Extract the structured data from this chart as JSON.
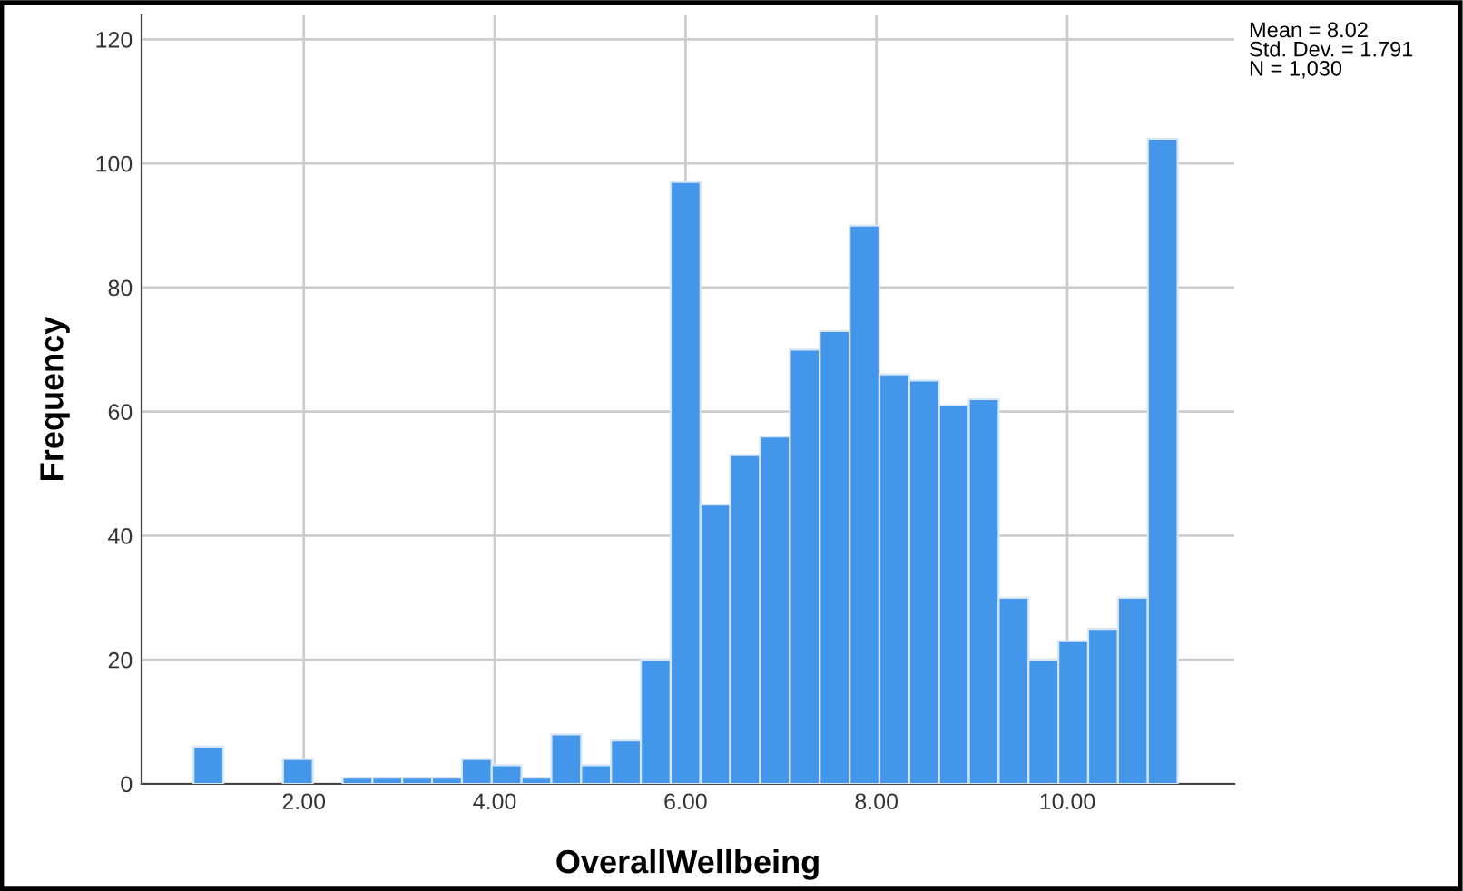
{
  "chart_data": {
    "type": "histogram",
    "xlabel": "OverallWellbeing",
    "ylabel": "Frequency",
    "bins": [
      0.84375,
      1.15625,
      1.46875,
      1.78125,
      2.09375,
      2.40625,
      2.71875,
      3.03125,
      3.34375,
      3.65625,
      3.96875,
      4.28125,
      4.59375,
      4.90625,
      5.21875,
      5.53125,
      5.84375,
      6.15625,
      6.46875,
      6.78125,
      7.09375,
      7.40625,
      7.71875,
      8.03125,
      8.34375,
      8.65625,
      8.96875,
      9.28125,
      9.59375,
      9.90625,
      10.21875,
      10.53125,
      10.84375,
      11.15625
    ],
    "values": [
      6,
      0,
      0,
      4,
      0,
      1,
      1,
      1,
      1,
      4,
      3,
      1,
      8,
      3,
      7,
      20,
      97,
      45,
      53,
      56,
      70,
      73,
      90,
      66,
      65,
      61,
      62,
      30,
      20,
      23,
      25,
      30,
      104
    ],
    "color": "#4396ea",
    "xlim": [
      0.3,
      11.75
    ],
    "ylim": [
      0,
      124
    ],
    "xticks": [
      {
        "value": 2,
        "label": "2.00"
      },
      {
        "value": 4,
        "label": "4.00"
      },
      {
        "value": 6,
        "label": "6.00"
      },
      {
        "value": 8,
        "label": "8.00"
      },
      {
        "value": 10,
        "label": "10.00"
      }
    ],
    "yticks": [
      0,
      20,
      40,
      60,
      80,
      100,
      120
    ],
    "grid": true,
    "annotations": [
      "Mean = 8.02\nStd. Dev. = 1.791\nN = 1,030"
    ]
  }
}
